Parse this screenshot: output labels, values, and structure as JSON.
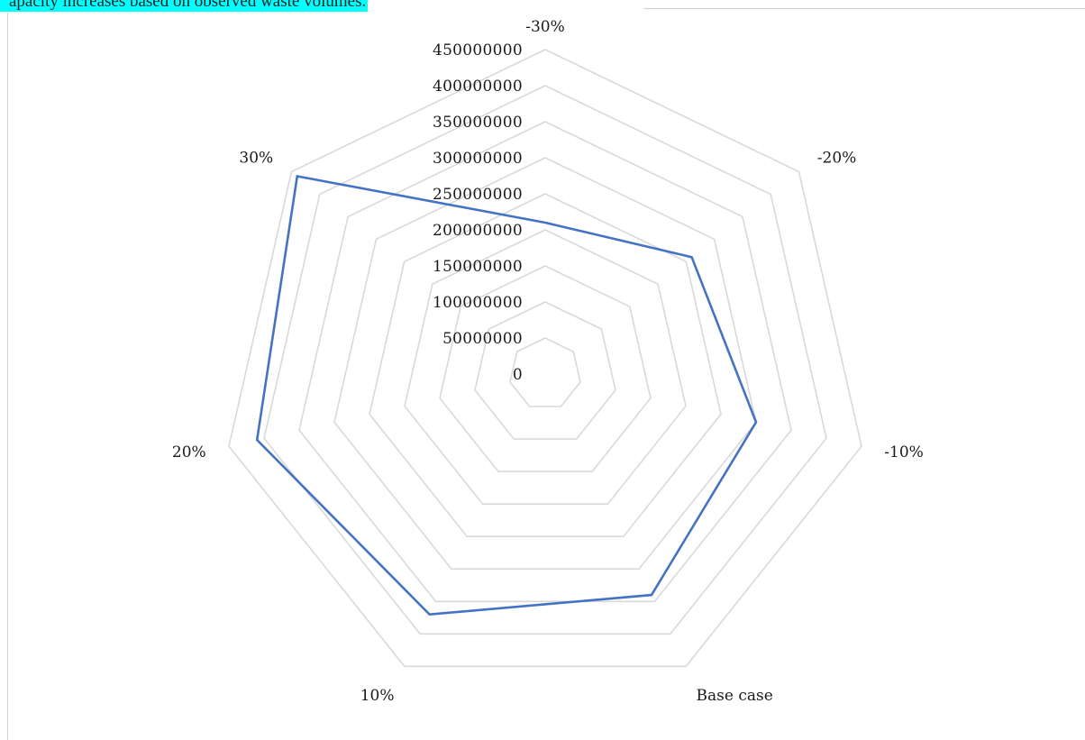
{
  "document": {
    "caption_fragment": "apacity increases based on observed waste volumes."
  },
  "chart_data": {
    "type": "radar",
    "categories": [
      "-30%",
      "-20%",
      "-10%",
      "Base case",
      "10%",
      "20%",
      "30%"
    ],
    "series": [
      {
        "values": [
          210000000,
          260000000,
          300000000,
          340000000,
          370000000,
          410000000,
          440000000
        ],
        "color": "#4472c4"
      }
    ],
    "radial_ticks": [
      "0",
      "50000000",
      "100000000",
      "150000000",
      "200000000",
      "250000000",
      "300000000",
      "350000000",
      "400000000",
      "450000000"
    ],
    "rlim": [
      0,
      450000000
    ],
    "grid": true,
    "grid_color": "#d9d9d9",
    "legend": "none"
  }
}
